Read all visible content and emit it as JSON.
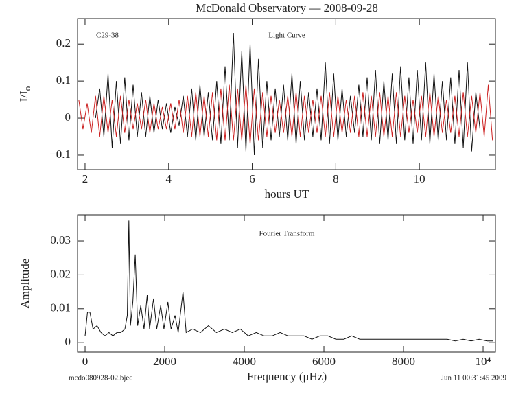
{
  "chart_data": [
    {
      "type": "line",
      "title": "McDonald Observatory — 2008-09-28",
      "label": "C29-38",
      "annotation": "Light Curve",
      "xlabel": "hours UT",
      "ylabel": "I/I",
      "ylabel_sub": "o",
      "xlim": [
        1.82,
        11.82
      ],
      "ylim": [
        -0.139,
        0.269
      ],
      "xticks": [
        2,
        4,
        6,
        8,
        10
      ],
      "yticks": [
        {
          "value": -0.1,
          "label": "−0.1"
        },
        0,
        0.1,
        0.2
      ],
      "series": [
        {
          "color": "#111111",
          "x": [
            2.25,
            2.35,
            2.45,
            2.55,
            2.65,
            2.75,
            2.85,
            2.95,
            3.05,
            3.15,
            3.25,
            3.35,
            3.45,
            3.55,
            3.65,
            3.75,
            3.85,
            3.95,
            4.05,
            4.15,
            4.25,
            4.35,
            4.45,
            4.55,
            4.65,
            4.75,
            4.85,
            4.95,
            5.05,
            5.15,
            5.25,
            5.35,
            5.45,
            5.55,
            5.65,
            5.75,
            5.85,
            5.95,
            6.05,
            6.15,
            6.25,
            6.35,
            6.45,
            6.55,
            6.65,
            6.75,
            6.85,
            6.95,
            7.05,
            7.15,
            7.25,
            7.35,
            7.45,
            7.55,
            7.65,
            7.75,
            7.85,
            7.95,
            8.05,
            8.15,
            8.25,
            8.35,
            8.45,
            8.55,
            8.65,
            8.75,
            8.85,
            8.95,
            9.05,
            9.15,
            9.25,
            9.35,
            9.45,
            9.55,
            9.65,
            9.75,
            9.85,
            9.95,
            10.05,
            10.15,
            10.25,
            10.35,
            10.45,
            10.55,
            10.65,
            10.75,
            10.85,
            10.95,
            11.05,
            11.15,
            11.25,
            11.35,
            11.45
          ],
          "values": [
            0.0,
            0.08,
            -0.05,
            0.12,
            -0.08,
            0.1,
            -0.07,
            0.11,
            -0.06,
            0.09,
            -0.05,
            0.07,
            -0.05,
            0.06,
            -0.04,
            0.05,
            -0.03,
            0.04,
            -0.04,
            0.03,
            -0.02,
            0.06,
            -0.05,
            0.08,
            -0.06,
            0.09,
            -0.05,
            0.07,
            -0.06,
            0.1,
            -0.07,
            0.14,
            -0.06,
            0.23,
            -0.08,
            0.18,
            -0.09,
            0.2,
            -0.1,
            0.16,
            -0.08,
            0.1,
            -0.06,
            0.08,
            -0.05,
            0.09,
            -0.06,
            0.12,
            -0.07,
            0.1,
            -0.06,
            0.07,
            -0.05,
            0.08,
            -0.06,
            0.15,
            -0.07,
            0.12,
            -0.06,
            0.08,
            -0.05,
            0.06,
            -0.04,
            0.09,
            -0.05,
            0.11,
            -0.06,
            0.13,
            -0.07,
            0.1,
            -0.06,
            0.12,
            -0.07,
            0.14,
            -0.06,
            0.11,
            -0.07,
            0.13,
            -0.06,
            0.15,
            -0.07,
            0.12,
            -0.06,
            0.1,
            -0.06,
            0.11,
            -0.07,
            0.13,
            -0.08,
            0.15,
            -0.09,
            0.07,
            -0.03
          ]
        },
        {
          "color": "#cc2020",
          "x": [
            1.85,
            1.95,
            2.05,
            2.15,
            2.25,
            2.35,
            2.45,
            2.55,
            2.65,
            2.75,
            2.85,
            2.95,
            3.05,
            3.15,
            3.25,
            3.35,
            3.45,
            3.55,
            3.65,
            3.75,
            3.85,
            3.95,
            4.05,
            4.15,
            4.25,
            4.35,
            4.45,
            4.55,
            4.65,
            4.75,
            4.85,
            4.95,
            5.05,
            5.15,
            5.25,
            5.35,
            5.45,
            5.55,
            5.65,
            5.75,
            5.85,
            5.95,
            6.05,
            6.15,
            6.25,
            6.35,
            6.45,
            6.55,
            6.65,
            6.75,
            6.85,
            6.95,
            7.05,
            7.15,
            7.25,
            7.35,
            7.45,
            7.55,
            7.65,
            7.75,
            7.85,
            7.95,
            8.05,
            8.15,
            8.25,
            8.35,
            8.45,
            8.55,
            8.65,
            8.75,
            8.85,
            8.95,
            9.05,
            9.15,
            9.25,
            9.35,
            9.45,
            9.55,
            9.65,
            9.75,
            9.85,
            9.95,
            10.05,
            10.15,
            10.25,
            10.35,
            10.45,
            10.55,
            10.65,
            10.75,
            10.85,
            10.95,
            11.05,
            11.15,
            11.25,
            11.35,
            11.45,
            11.55,
            11.65,
            11.75
          ],
          "values": [
            0.05,
            -0.03,
            0.04,
            -0.04,
            0.06,
            -0.05,
            0.06,
            -0.04,
            0.05,
            -0.05,
            0.06,
            -0.04,
            0.05,
            -0.03,
            0.04,
            -0.03,
            0.05,
            -0.04,
            0.04,
            -0.03,
            0.03,
            -0.03,
            0.04,
            -0.03,
            0.05,
            -0.04,
            0.06,
            -0.05,
            0.07,
            -0.05,
            0.06,
            -0.05,
            0.07,
            -0.06,
            0.08,
            -0.06,
            0.09,
            -0.06,
            0.08,
            -0.06,
            0.09,
            -0.07,
            0.08,
            -0.06,
            0.07,
            -0.05,
            0.06,
            -0.04,
            0.05,
            -0.04,
            0.06,
            -0.05,
            0.07,
            -0.05,
            0.06,
            -0.04,
            0.05,
            -0.04,
            0.06,
            -0.05,
            0.07,
            -0.05,
            0.06,
            -0.04,
            0.05,
            -0.04,
            0.06,
            -0.05,
            0.07,
            -0.05,
            0.06,
            -0.05,
            0.07,
            -0.05,
            0.06,
            -0.05,
            0.07,
            -0.05,
            0.06,
            -0.04,
            0.05,
            -0.04,
            0.06,
            -0.05,
            0.07,
            -0.05,
            0.06,
            -0.04,
            0.05,
            -0.04,
            0.06,
            -0.05,
            0.07,
            -0.05,
            0.06,
            -0.04,
            0.07,
            -0.05,
            0.09,
            -0.06
          ]
        }
      ]
    },
    {
      "type": "line",
      "annotation": "Fourier Transform",
      "xlabel": "Frequency (μHz)",
      "ylabel": "Amplitude",
      "xlim": [
        -190,
        10310
      ],
      "ylim": [
        -0.0028,
        0.0377
      ],
      "xticks": [
        0,
        2000,
        4000,
        6000,
        8000,
        {
          "value": 10000,
          "label": "10⁴"
        }
      ],
      "yticks": [
        0,
        0.01,
        0.02,
        0.03
      ],
      "series": [
        {
          "color": "#111111",
          "x": [
            0,
            60,
            120,
            200,
            300,
            400,
            500,
            600,
            700,
            800,
            900,
            1000,
            1060,
            1100,
            1140,
            1200,
            1260,
            1320,
            1400,
            1480,
            1560,
            1620,
            1720,
            1800,
            1900,
            1980,
            2080,
            2160,
            2260,
            2340,
            2460,
            2540,
            2700,
            2900,
            3100,
            3300,
            3500,
            3700,
            3900,
            4100,
            4300,
            4500,
            4700,
            4900,
            5100,
            5300,
            5500,
            5700,
            5900,
            6100,
            6300,
            6500,
            6700,
            6900,
            7100,
            7300,
            7500,
            7700,
            7900,
            8100,
            8300,
            8500,
            8700,
            8900,
            9100,
            9300,
            9500,
            9700,
            9900,
            10100,
            10250
          ],
          "values": [
            0.002,
            0.009,
            0.009,
            0.004,
            0.005,
            0.003,
            0.002,
            0.003,
            0.002,
            0.003,
            0.003,
            0.004,
            0.008,
            0.036,
            0.005,
            0.012,
            0.026,
            0.005,
            0.011,
            0.004,
            0.014,
            0.004,
            0.013,
            0.004,
            0.011,
            0.004,
            0.012,
            0.004,
            0.008,
            0.003,
            0.015,
            0.003,
            0.004,
            0.003,
            0.005,
            0.003,
            0.004,
            0.003,
            0.004,
            0.002,
            0.003,
            0.002,
            0.002,
            0.003,
            0.002,
            0.002,
            0.002,
            0.001,
            0.002,
            0.002,
            0.001,
            0.001,
            0.002,
            0.001,
            0.001,
            0.001,
            0.001,
            0.001,
            0.001,
            0.001,
            0.001,
            0.001,
            0.001,
            0.001,
            0.001,
            0.0005,
            0.001,
            0.0005,
            0.001,
            0.0005,
            0.0005
          ]
        }
      ]
    }
  ],
  "footer": {
    "left": "mcdo080928-02.bjed",
    "right": "Jun 11 00:31:45 2009"
  }
}
